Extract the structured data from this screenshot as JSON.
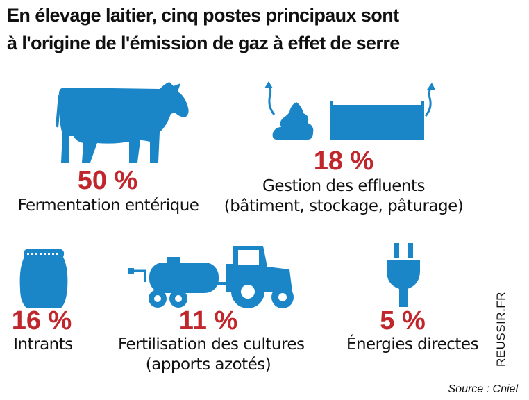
{
  "title": {
    "line1": "En élevage laitier, cinq postes principaux sont",
    "line2": "à l'origine de l'émission de gaz à effet de serre"
  },
  "colors": {
    "icon_blue": "#1a86c8",
    "percent_red": "#c0272d"
  },
  "items": [
    {
      "percent": "50 %",
      "label": "Fermentation entérique",
      "icon": "cow-icon"
    },
    {
      "percent": "18 %",
      "label": "Gestion des effluents",
      "sublabel": "(bâtiment, stockage, pâturage)",
      "icon": "manure-and-tank-icon"
    },
    {
      "percent": "16 %",
      "label": "Intrants",
      "icon": "feed-sack-icon"
    },
    {
      "percent": "11 %",
      "label": "Fertilisation des cultures",
      "sublabel": "(apports azotés)",
      "icon": "tractor-with-tank-icon"
    },
    {
      "percent": "5 %",
      "label": "Énergies directes",
      "icon": "electric-plug-icon"
    }
  ],
  "source": "Source : Cniel",
  "credit": "REUSSIR.FR"
}
